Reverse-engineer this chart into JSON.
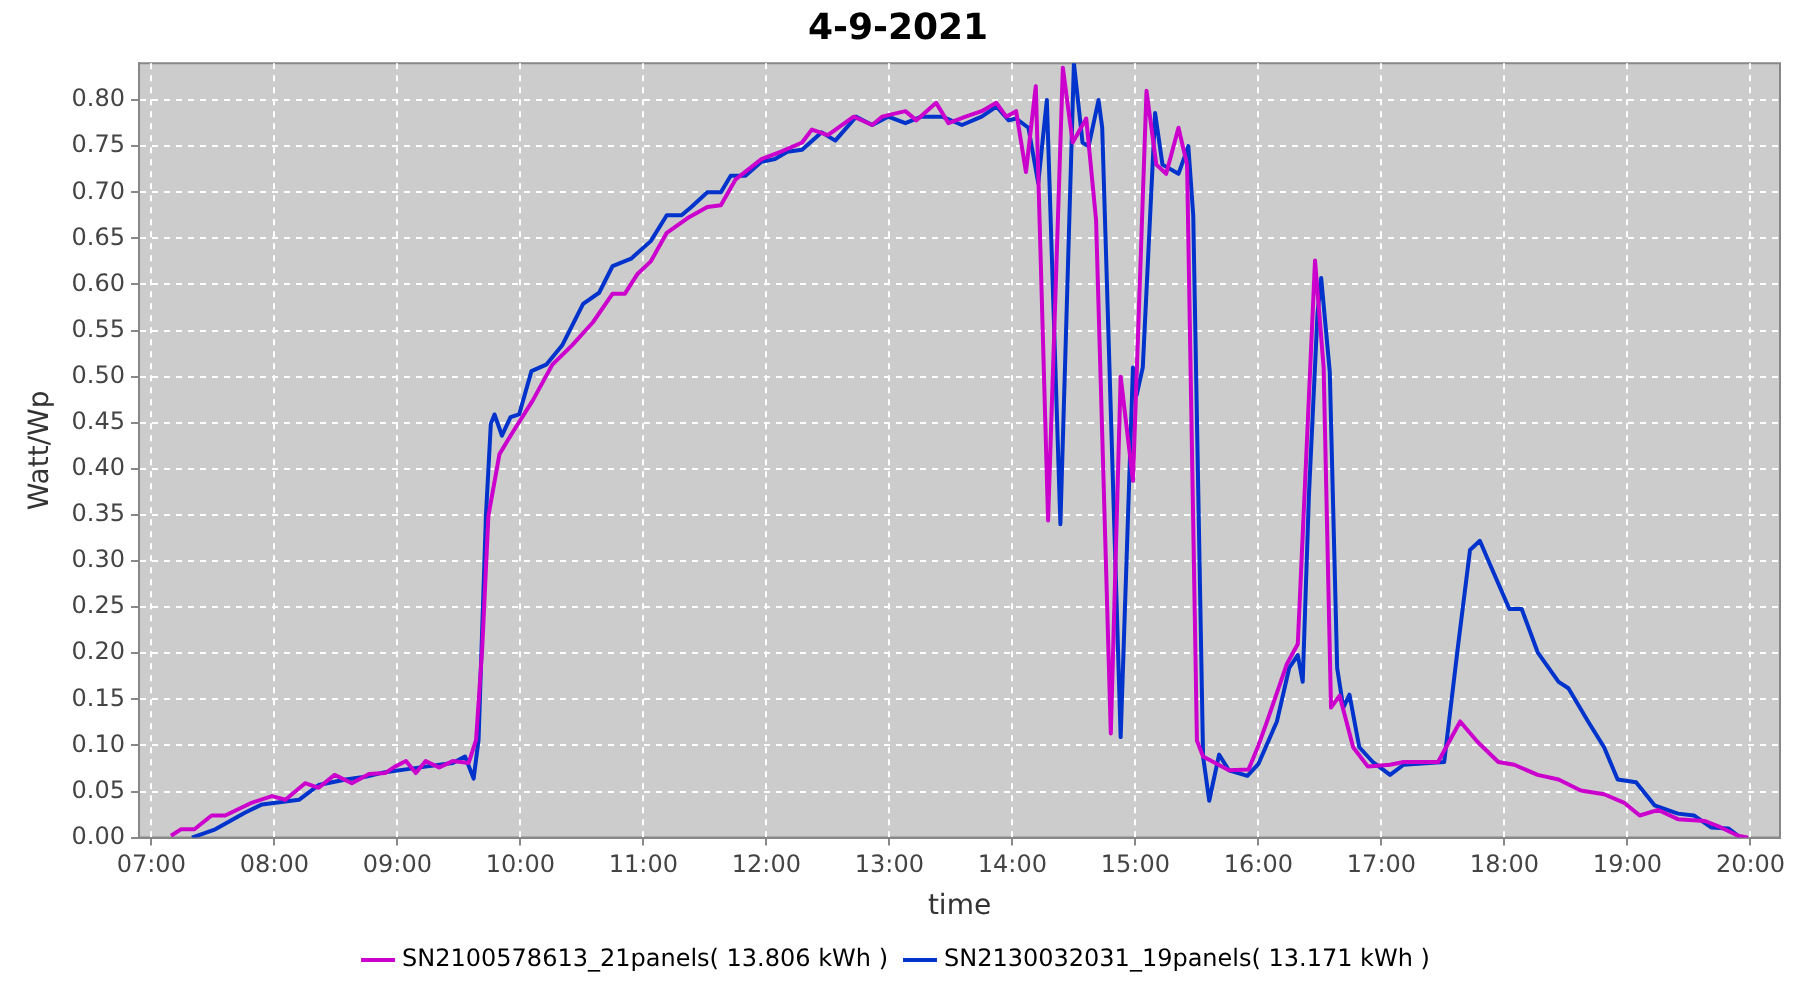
{
  "chart_data": {
    "type": "line",
    "title": "4-9-2021",
    "xlabel": "time",
    "ylabel": "Watt/Wp",
    "legend": "bottom",
    "grid": true,
    "marker": "none",
    "line_style": "solid",
    "xlim": [
      6.9,
      20.24
    ],
    "xticks": [
      {
        "value": 7,
        "label": "07:00"
      },
      {
        "value": 8,
        "label": "08:00"
      },
      {
        "value": 9,
        "label": "09:00"
      },
      {
        "value": 10,
        "label": "10:00"
      },
      {
        "value": 11,
        "label": "11:00"
      },
      {
        "value": 12,
        "label": "12:00"
      },
      {
        "value": 13,
        "label": "13:00"
      },
      {
        "value": 14,
        "label": "14:00"
      },
      {
        "value": 15,
        "label": "15:00"
      },
      {
        "value": 16,
        "label": "16:00"
      },
      {
        "value": 17,
        "label": "17:00"
      },
      {
        "value": 18,
        "label": "18:00"
      },
      {
        "value": 19,
        "label": "19:00"
      },
      {
        "value": 20,
        "label": "20:00"
      }
    ],
    "ylim": [
      0,
      0.84
    ],
    "yticks": [
      {
        "value": 0,
        "label": "0.00"
      },
      {
        "value": 0.05,
        "label": "0.05"
      },
      {
        "value": 0.1,
        "label": "0.10"
      },
      {
        "value": 0.15,
        "label": "0.15"
      },
      {
        "value": 0.2,
        "label": "0.20"
      },
      {
        "value": 0.25,
        "label": "0.25"
      },
      {
        "value": 0.3,
        "label": "0.30"
      },
      {
        "value": 0.35,
        "label": "0.35"
      },
      {
        "value": 0.4,
        "label": "0.40"
      },
      {
        "value": 0.45,
        "label": "0.45"
      },
      {
        "value": 0.5,
        "label": "0.50"
      },
      {
        "value": 0.55,
        "label": "0.55"
      },
      {
        "value": 0.6,
        "label": "0.60"
      },
      {
        "value": 0.65,
        "label": "0.65"
      },
      {
        "value": 0.7,
        "label": "0.70"
      },
      {
        "value": 0.75,
        "label": "0.75"
      },
      {
        "value": 0.8,
        "label": "0.80"
      }
    ],
    "series": [
      {
        "name": "SN2100578613_21panels( 13.806 kWh )",
        "color": "#cc00cc",
        "x": [
          7.16,
          7.24,
          7.35,
          7.49,
          7.6,
          7.82,
          7.98,
          8.09,
          8.25,
          8.36,
          8.49,
          8.63,
          8.77,
          8.9,
          8.98,
          9.07,
          9.15,
          9.23,
          9.34,
          9.45,
          9.58,
          9.64,
          9.69,
          9.74,
          9.83,
          9.93,
          10.1,
          10.26,
          10.42,
          10.59,
          10.75,
          10.85,
          10.95,
          11.06,
          11.19,
          11.36,
          11.52,
          11.63,
          11.75,
          11.96,
          12.12,
          12.29,
          12.37,
          12.5,
          12.71,
          12.86,
          12.94,
          13.13,
          13.22,
          13.38,
          13.48,
          13.62,
          13.75,
          13.87,
          13.95,
          14.03,
          14.11,
          14.19,
          14.29,
          14.41,
          14.49,
          14.6,
          14.68,
          14.8,
          14.88,
          14.98,
          15.09,
          15.17,
          15.25,
          15.35,
          15.42,
          15.5,
          15.55,
          15.76,
          15.92,
          16.0,
          16.07,
          16.23,
          16.32,
          16.4,
          16.46,
          16.53,
          16.59,
          16.66,
          16.77,
          16.89,
          17.07,
          17.18,
          17.46,
          17.64,
          17.78,
          17.95,
          18.08,
          18.27,
          18.44,
          18.62,
          18.81,
          18.97,
          19.1,
          19.25,
          19.41,
          19.63,
          19.76,
          19.9,
          19.98
        ],
        "values": [
          0.002,
          0.009,
          0.009,
          0.024,
          0.024,
          0.038,
          0.045,
          0.041,
          0.059,
          0.054,
          0.068,
          0.059,
          0.069,
          0.07,
          0.077,
          0.083,
          0.07,
          0.083,
          0.076,
          0.083,
          0.081,
          0.106,
          0.206,
          0.349,
          0.416,
          0.438,
          0.474,
          0.513,
          0.534,
          0.559,
          0.59,
          0.59,
          0.611,
          0.625,
          0.656,
          0.672,
          0.684,
          0.686,
          0.714,
          0.736,
          0.744,
          0.754,
          0.768,
          0.762,
          0.782,
          0.773,
          0.782,
          0.788,
          0.778,
          0.797,
          0.775,
          0.782,
          0.788,
          0.797,
          0.782,
          0.788,
          0.722,
          0.815,
          0.344,
          0.835,
          0.754,
          0.78,
          0.67,
          0.113,
          0.5,
          0.387,
          0.81,
          0.73,
          0.72,
          0.77,
          0.73,
          0.105,
          0.088,
          0.073,
          0.074,
          0.1,
          0.126,
          0.188,
          0.21,
          0.447,
          0.626,
          0.51,
          0.141,
          0.154,
          0.098,
          0.077,
          0.079,
          0.082,
          0.082,
          0.126,
          0.104,
          0.082,
          0.079,
          0.068,
          0.063,
          0.051,
          0.047,
          0.038,
          0.024,
          0.03,
          0.02,
          0.018,
          0.011,
          0.002,
          0
        ]
      },
      {
        "name": "SN2130032031_19panels( 13.171 kWh )",
        "color": "#0033cc",
        "x": [
          7.33,
          7.52,
          7.76,
          7.9,
          8.2,
          8.36,
          8.58,
          8.74,
          8.9,
          9.07,
          9.23,
          9.45,
          9.55,
          9.62,
          9.66,
          9.72,
          9.76,
          9.79,
          9.85,
          9.92,
          9.99,
          10.09,
          10.21,
          10.34,
          10.51,
          10.64,
          10.75,
          10.9,
          11.06,
          11.19,
          11.31,
          11.39,
          11.52,
          11.63,
          11.71,
          11.83,
          11.96,
          12.07,
          12.17,
          12.29,
          12.45,
          12.56,
          12.73,
          12.86,
          12.99,
          13.13,
          13.26,
          13.43,
          13.59,
          13.75,
          13.87,
          13.97,
          14.03,
          14.13,
          14.21,
          14.28,
          14.39,
          14.5,
          14.57,
          14.62,
          14.7,
          14.73,
          14.88,
          14.98,
          15.01,
          15.06,
          15.16,
          15.22,
          15.35,
          15.43,
          15.47,
          15.55,
          15.6,
          15.68,
          15.76,
          15.91,
          16.0,
          16.15,
          16.25,
          16.32,
          16.36,
          16.41,
          16.48,
          16.51,
          16.58,
          16.64,
          16.69,
          16.74,
          16.82,
          16.93,
          17.07,
          17.18,
          17.51,
          17.62,
          17.72,
          17.8,
          17.88,
          18.04,
          18.14,
          18.27,
          18.44,
          18.52,
          18.68,
          18.81,
          18.92,
          19.07,
          19.22,
          19.41,
          19.54,
          19.68,
          19.82,
          19.9
        ],
        "values": [
          0,
          0.009,
          0.027,
          0.036,
          0.041,
          0.057,
          0.063,
          0.066,
          0.071,
          0.074,
          0.077,
          0.081,
          0.088,
          0.064,
          0.106,
          0.349,
          0.449,
          0.459,
          0.436,
          0.456,
          0.459,
          0.506,
          0.513,
          0.534,
          0.579,
          0.591,
          0.62,
          0.628,
          0.647,
          0.675,
          0.675,
          0.684,
          0.7,
          0.7,
          0.718,
          0.718,
          0.733,
          0.736,
          0.744,
          0.746,
          0.765,
          0.756,
          0.782,
          0.773,
          0.782,
          0.775,
          0.782,
          0.782,
          0.773,
          0.782,
          0.793,
          0.778,
          0.78,
          0.77,
          0.71,
          0.8,
          0.34,
          0.84,
          0.754,
          0.75,
          0.8,
          0.77,
          0.109,
          0.51,
          0.48,
          0.51,
          0.786,
          0.73,
          0.72,
          0.75,
          0.675,
          0.088,
          0.04,
          0.09,
          0.073,
          0.067,
          0.08,
          0.126,
          0.184,
          0.198,
          0.169,
          0.37,
          0.568,
          0.607,
          0.505,
          0.184,
          0.141,
          0.155,
          0.098,
          0.082,
          0.068,
          0.079,
          0.082,
          0.205,
          0.312,
          0.322,
          0.297,
          0.248,
          0.248,
          0.201,
          0.169,
          0.162,
          0.126,
          0.098,
          0.063,
          0.06,
          0.035,
          0.026,
          0.024,
          0.011,
          0.01,
          0.002
        ]
      }
    ]
  }
}
